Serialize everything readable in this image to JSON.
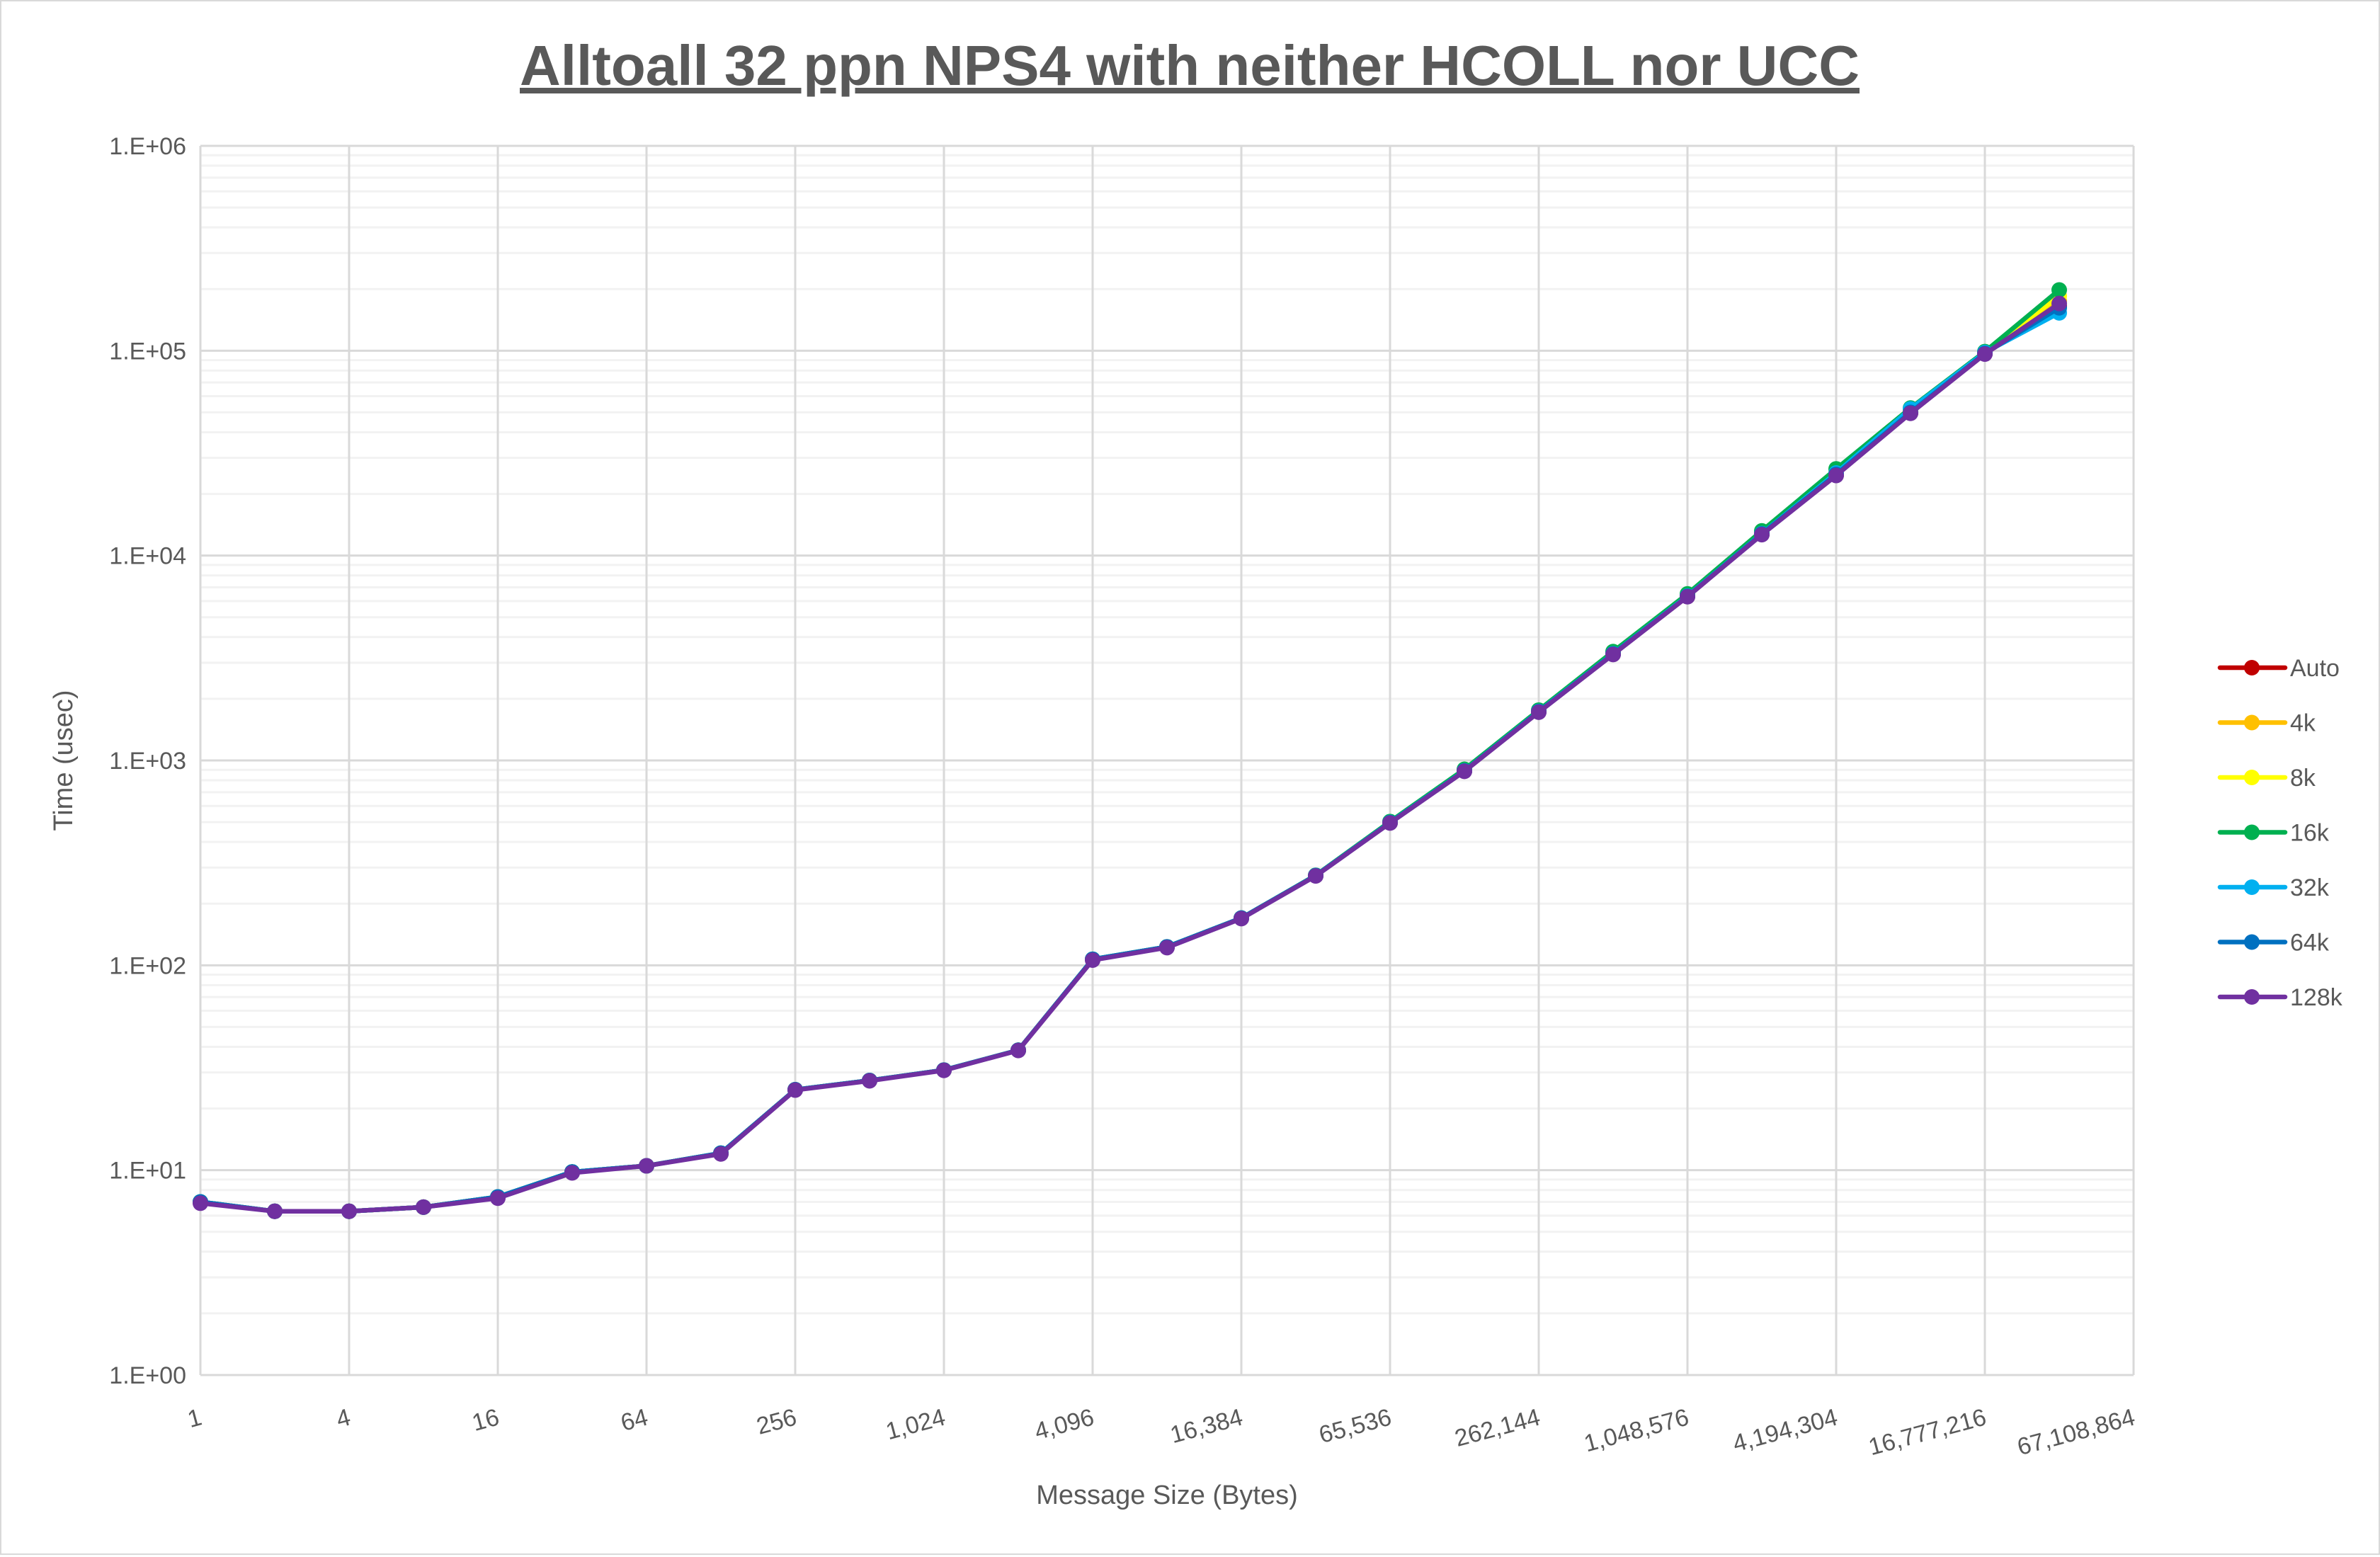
{
  "chart_data": {
    "type": "line",
    "title": "Alltoall 32 ppn NPS4 with neither HCOLL nor UCC",
    "xlabel": "Message Size (Bytes)",
    "ylabel": "Time (usec)",
    "x_scale": "log2",
    "y_scale": "log10",
    "xlim": [
      1,
      67108864
    ],
    "ylim": [
      1,
      1000000
    ],
    "x_tick_labels": [
      "1",
      "4",
      "16",
      "64",
      "256",
      "1,024",
      "4,096",
      "16,384",
      "65,536",
      "262,144",
      "1,048,576",
      "4,194,304",
      "16,777,216",
      "67,108,864"
    ],
    "y_tick_labels": [
      "1.E+00",
      "1.E+01",
      "1.E+02",
      "1.E+03",
      "1.E+04",
      "1.E+05",
      "1.E+06"
    ],
    "grid": true,
    "legend_position": "right",
    "x": [
      1,
      2,
      4,
      8,
      16,
      32,
      64,
      128,
      256,
      512,
      1024,
      2048,
      4096,
      8192,
      16384,
      32768,
      65536,
      131072,
      262144,
      524288,
      1048576,
      2097152,
      4194304,
      8388608,
      16777216,
      33554432
    ],
    "series": [
      {
        "name": "Auto",
        "color": "#c00000",
        "values": [
          7.0,
          6.3,
          6.3,
          6.6,
          7.4,
          9.8,
          10.5,
          12.1,
          24.7,
          27.4,
          30.8,
          38.5,
          107,
          123,
          170,
          274,
          497,
          887,
          1727,
          3300,
          6310,
          12700,
          24700,
          49700,
          96600,
          165000
        ]
      },
      {
        "name": "4k",
        "color": "#ffc000",
        "values": [
          7.0,
          6.3,
          6.3,
          6.6,
          7.4,
          9.8,
          10.5,
          12.1,
          24.7,
          27.4,
          30.8,
          38.5,
          107,
          123,
          170,
          274,
          500,
          895,
          1740,
          3350,
          6400,
          12900,
          25200,
          50500,
          97500,
          175000
        ]
      },
      {
        "name": "8k",
        "color": "#ffff00",
        "values": [
          7.0,
          6.3,
          6.3,
          6.6,
          7.4,
          9.8,
          10.5,
          12.1,
          24.7,
          27.4,
          30.8,
          38.5,
          107,
          123,
          170,
          274,
          500,
          900,
          1750,
          3380,
          6450,
          13100,
          25800,
          51000,
          98000,
          185000
        ]
      },
      {
        "name": "16k",
        "color": "#00b050",
        "values": [
          7.0,
          6.3,
          6.3,
          6.6,
          7.4,
          9.8,
          10.5,
          12.1,
          24.7,
          27.4,
          30.8,
          38.5,
          107,
          123,
          170,
          275,
          503,
          905,
          1760,
          3400,
          6500,
          13200,
          26500,
          52500,
          99000,
          198000
        ]
      },
      {
        "name": "32k",
        "color": "#00b0f0",
        "values": [
          7.0,
          6.3,
          6.3,
          6.6,
          7.4,
          9.8,
          10.5,
          12.1,
          24.7,
          27.4,
          30.8,
          38.5,
          107,
          123,
          170,
          274,
          498,
          890,
          1735,
          3320,
          6350,
          12800,
          25300,
          52000,
          98000,
          153000
        ]
      },
      {
        "name": "64k",
        "color": "#0070c0",
        "values": [
          7.0,
          6.3,
          6.3,
          6.6,
          7.4,
          9.8,
          10.5,
          12.1,
          24.7,
          27.4,
          30.8,
          38.5,
          107,
          123,
          170,
          274,
          497,
          888,
          1730,
          3310,
          6320,
          12750,
          24900,
          50000,
          97000,
          162000
        ]
      },
      {
        "name": "128k",
        "color": "#7030a0",
        "values": [
          6.9,
          6.3,
          6.3,
          6.6,
          7.3,
          9.7,
          10.5,
          12.0,
          24.6,
          27.3,
          30.7,
          38.4,
          106,
          122,
          169,
          273,
          495,
          885,
          1720,
          3290,
          6300,
          12650,
          24600,
          49500,
          96300,
          170000
        ]
      }
    ]
  }
}
